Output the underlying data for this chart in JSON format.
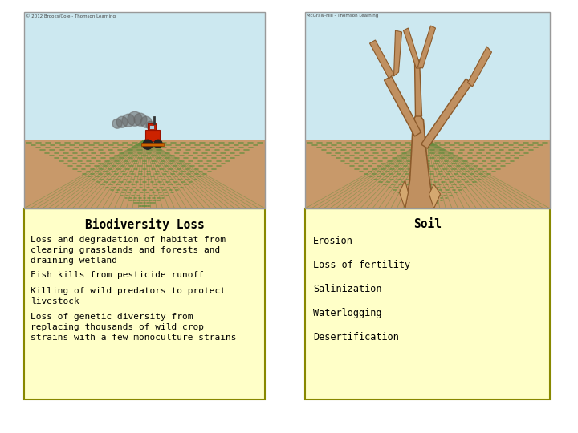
{
  "background_color": "#ffffff",
  "left_panel": {
    "title": "Biodiversity Loss",
    "items": [
      "Loss and degradation of habitat from\nclearing grasslands and forests and\ndraining wetland",
      "Fish kills from pesticide runoff",
      "Killing of wild predators to protect\nlivestock",
      "Loss of genetic diversity from\nreplacing thousands of wild crop\nstrains with a few monoculture strains"
    ],
    "box_color": "#ffffc8",
    "box_edge": "#888800",
    "copyright": "© 2012 Brooks/Cole - Thomson Learning"
  },
  "right_panel": {
    "title": "Soil",
    "items": [
      "Erosion",
      "Loss of fertility",
      "Salinization",
      "Waterlogging",
      "Desertification"
    ],
    "box_color": "#ffffc8",
    "box_edge": "#888800",
    "copyright": "McGraw-Hill - Thomson Learning"
  },
  "sky_color": "#cce8f0",
  "ground_color": "#c8996a",
  "dash_color": "#5a8c3a",
  "tractor_red": "#cc2200",
  "tractor_dark": "#991100",
  "tree_color": "#c09060",
  "tree_dark": "#8B5A2B",
  "smoke_color": "#666666"
}
